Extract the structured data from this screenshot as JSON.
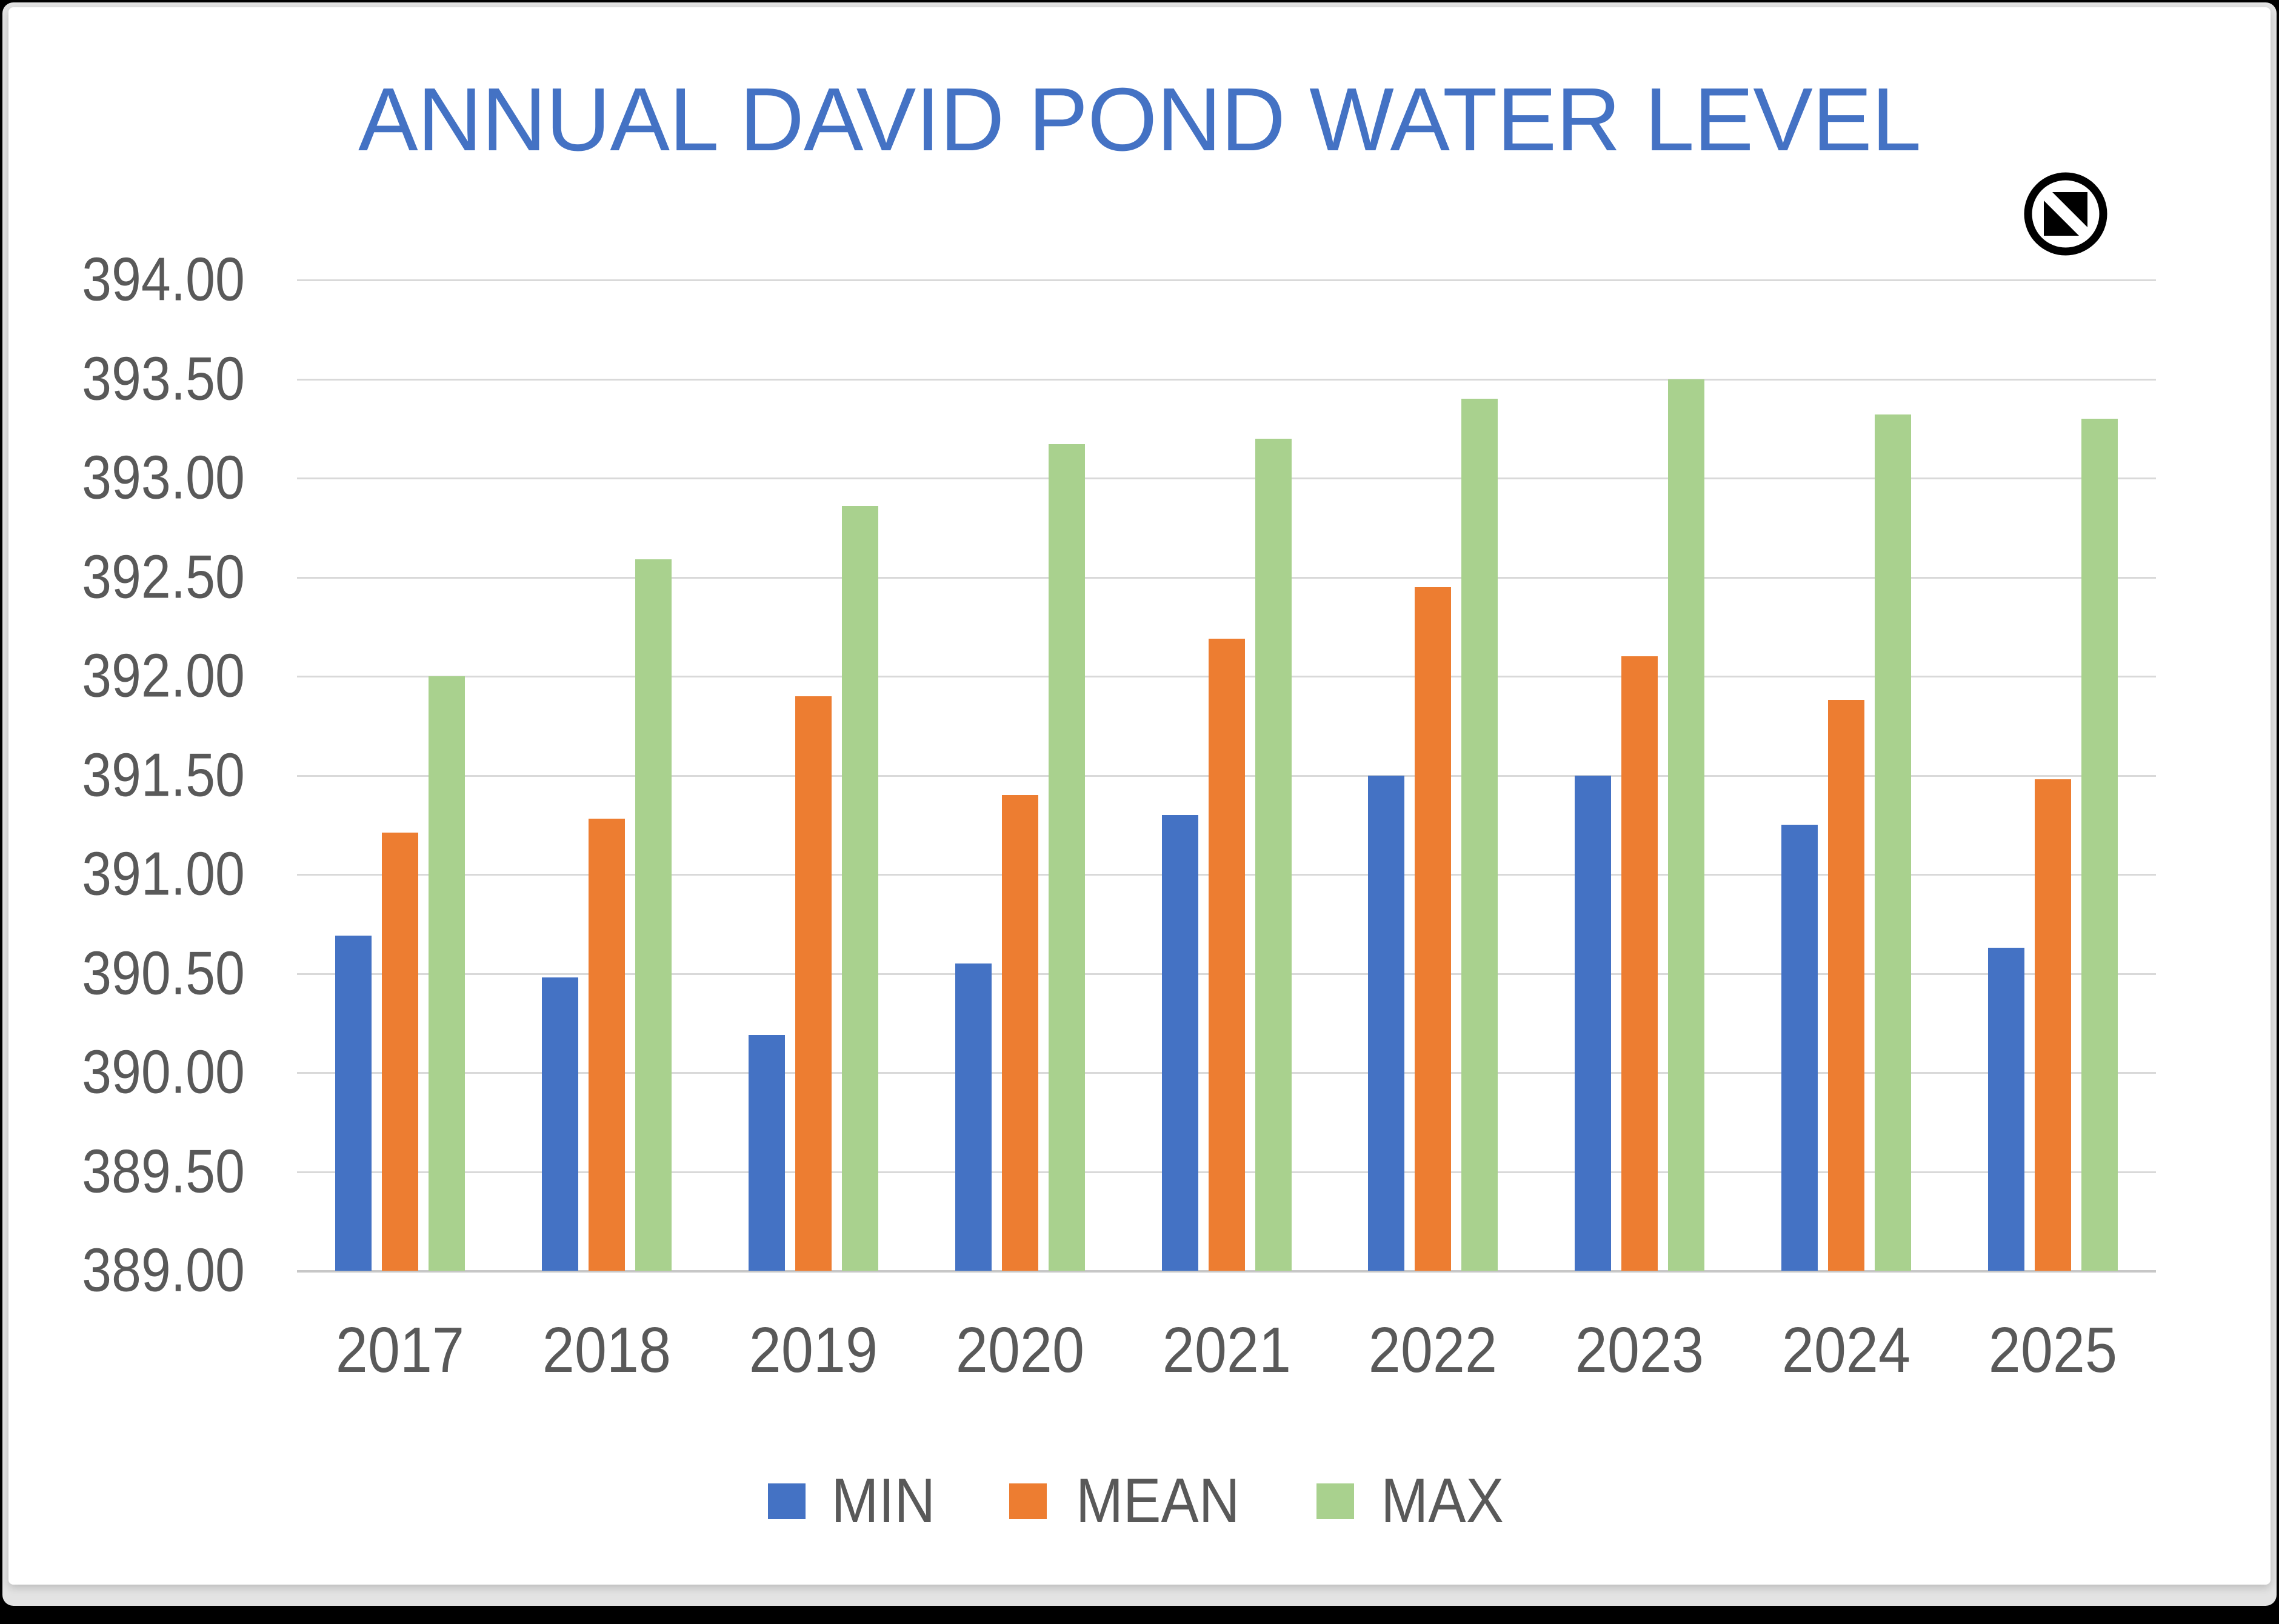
{
  "window": {
    "frame_color": "#e3e3e3",
    "background_color": "#ffffff",
    "border_color": "#000000"
  },
  "icon": {
    "name": "no-symbol"
  },
  "chart_data": {
    "type": "bar",
    "title": "ANNUAL DAVID POND WATER LEVEL",
    "title_color": "#4472C4",
    "categories": [
      "2017",
      "2018",
      "2019",
      "2020",
      "2021",
      "2022",
      "2023",
      "2024",
      "2025"
    ],
    "series": [
      {
        "name": "MIN",
        "color": "#4472C4",
        "values": [
          390.69,
          390.48,
          390.19,
          390.55,
          391.3,
          391.5,
          391.5,
          391.25,
          390.63
        ]
      },
      {
        "name": "MEAN",
        "color": "#ED7D31",
        "values": [
          391.21,
          391.28,
          391.9,
          391.4,
          392.19,
          392.45,
          392.1,
          391.88,
          391.48
        ]
      },
      {
        "name": "MAX",
        "color": "#A9D18E",
        "values": [
          392.0,
          392.59,
          392.86,
          393.17,
          393.2,
          393.4,
          393.5,
          393.32,
          393.3
        ]
      }
    ],
    "xlabel": "",
    "ylabel": "",
    "ylim": [
      389.0,
      394.0
    ],
    "ytick_step": 0.5,
    "ytick_labels": [
      "394.00",
      "393.50",
      "393.00",
      "392.50",
      "392.00",
      "391.50",
      "391.00",
      "390.50",
      "390.00",
      "389.50",
      "389.00"
    ],
    "grid": true,
    "gridline_color": "#D9D9D9",
    "axis_line_color": "#C7C7C7",
    "text_color": "#595959",
    "legend_position": "bottom"
  }
}
